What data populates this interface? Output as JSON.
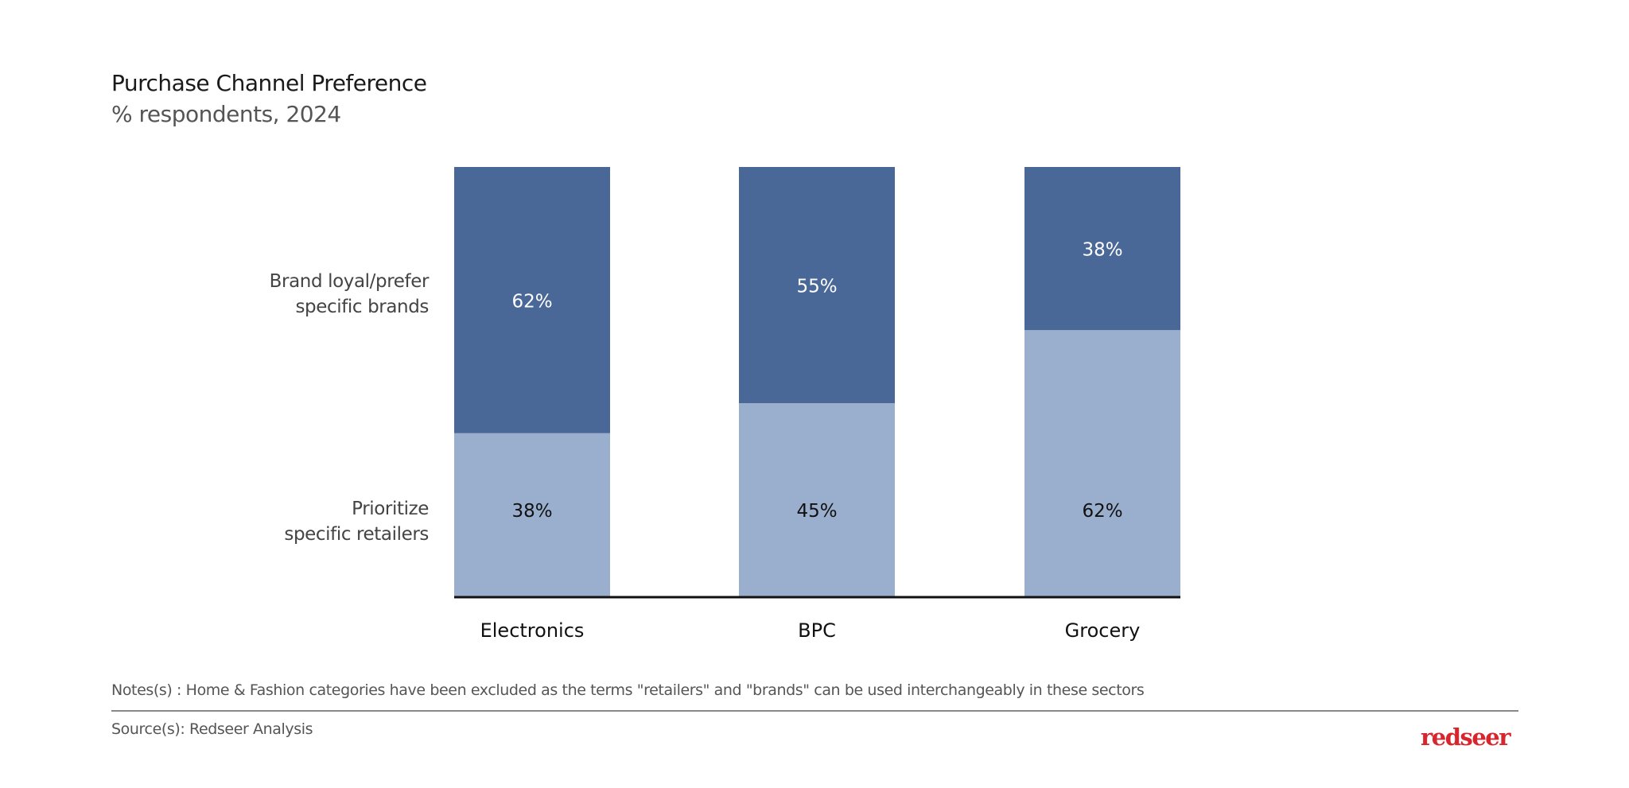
{
  "chart_data": {
    "type": "bar",
    "stacked": true,
    "title": "Purchase Channel Preference",
    "subtitle": "% respondents, 2024",
    "categories": [
      "Electronics",
      "BPC",
      "Grocery"
    ],
    "series": [
      {
        "name": "Prioritize specific retailers",
        "values": [
          38,
          45,
          62
        ],
        "color": "#9aafcd",
        "label_color": "#111111"
      },
      {
        "name": "Brand loyal/prefer specific brands",
        "values": [
          62,
          55,
          38
        ],
        "color": "#4a6897",
        "label_color": "#ffffff"
      }
    ],
    "series_labels": [
      "Prioritize\nspecific retailers",
      "Brand loyal/prefer\nspecific brands"
    ],
    "data_labels": [
      [
        "38%",
        "45%",
        "62%"
      ],
      [
        "62%",
        "55%",
        "38%"
      ]
    ],
    "ylim": [
      0,
      100
    ],
    "grid": false,
    "legend": "left-row-labels"
  },
  "footer": {
    "notes": "Notes(s) : Home & Fashion categories have been excluded as the terms \"retailers\" and \"brands\" can be used interchangeably in these sectors",
    "source": "Source(s): Redseer Analysis",
    "logo": "redseer",
    "logo_color": "#d7262e"
  }
}
